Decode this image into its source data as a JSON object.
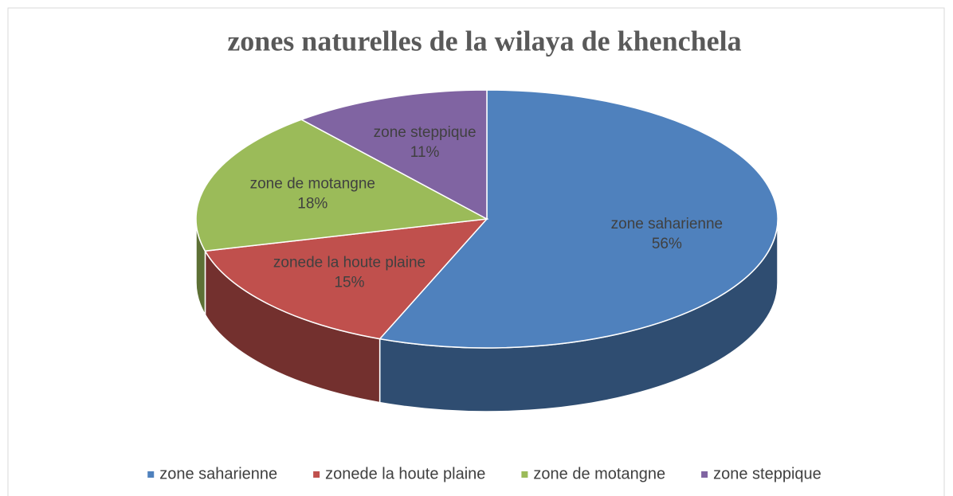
{
  "chart_data": {
    "type": "pie",
    "title": "zones naturelles de la wilaya de khenchela",
    "categories": [
      "zone saharienne",
      "zonede la houte plaine",
      "zone de motangne",
      "zone steppique"
    ],
    "values": [
      56,
      15,
      18,
      11
    ],
    "value_labels": [
      "56%",
      "15%",
      "18%",
      "11%"
    ],
    "colors": [
      "#4f81bd",
      "#c0504d",
      "#9bbb59",
      "#8064a2"
    ],
    "legend": "bottom"
  }
}
